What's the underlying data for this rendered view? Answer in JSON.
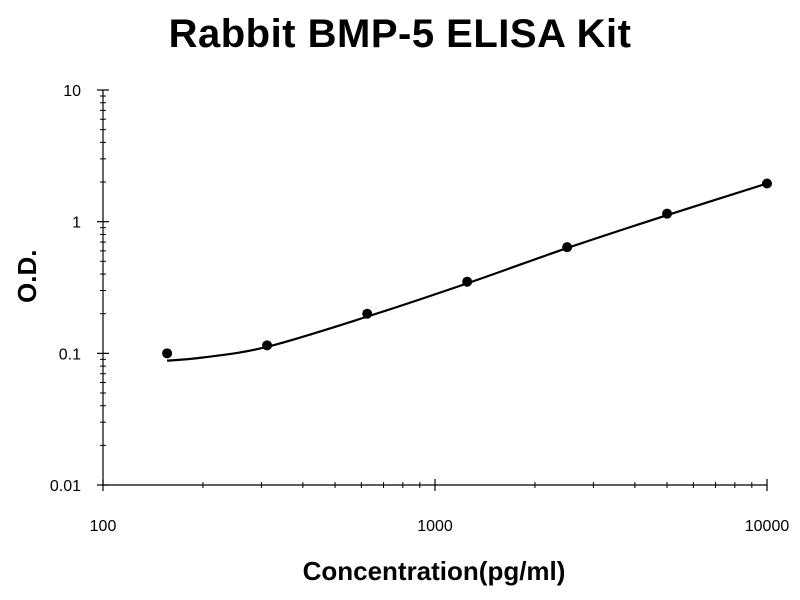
{
  "chart_data": {
    "type": "scatter",
    "title": "Rabbit BMP-5 ELISA Kit",
    "xlabel": "Concentration(pg/ml)",
    "ylabel": "O.D.",
    "xscale": "log",
    "yscale": "log",
    "xlim": [
      100,
      10000
    ],
    "ylim": [
      0.01,
      10
    ],
    "x_ticks": [
      "100",
      "1000",
      "10000"
    ],
    "y_ticks": [
      "0.01",
      "0.1",
      "1",
      "10"
    ],
    "grid": false,
    "legend": "none",
    "series": [
      {
        "x": [
          156,
          312,
          625,
          1250,
          2500,
          5000,
          10000
        ],
        "y": [
          0.1,
          0.115,
          0.2,
          0.35,
          0.64,
          1.15,
          1.95
        ]
      }
    ],
    "fit_curve": {
      "x": [
        156,
        200,
        312,
        625,
        1250,
        2500,
        5000,
        10000
      ],
      "y": [
        0.088,
        0.093,
        0.112,
        0.19,
        0.34,
        0.63,
        1.12,
        1.95
      ]
    }
  }
}
